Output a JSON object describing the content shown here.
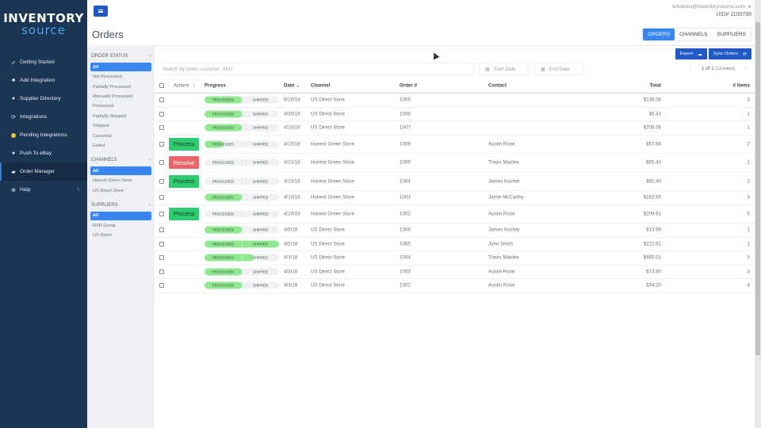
{
  "logo": {
    "line1": "INVENTORY",
    "line2": "source"
  },
  "sidebar": {
    "items": [
      {
        "label": "Getting Started",
        "icon": "rocket-icon",
        "glyph": "➶"
      },
      {
        "label": "Add Integration",
        "icon": "plug-icon",
        "glyph": "♣"
      },
      {
        "label": "Supplier Directory",
        "icon": "globe-icon",
        "glyph": "●"
      },
      {
        "label": "Integrations",
        "icon": "sync-icon",
        "glyph": "⟳"
      },
      {
        "label": "Pending Integrations",
        "icon": "pending-dot-icon",
        "glyph": ""
      },
      {
        "label": "Push To eBay",
        "icon": "globe-icon",
        "glyph": "●"
      },
      {
        "label": "Order Manager",
        "icon": "truck-icon",
        "glyph": "▰"
      },
      {
        "label": "Help",
        "icon": "lifebuoy-icon",
        "glyph": "⊕"
      }
    ],
    "help_chevron": "‹"
  },
  "topbar": {
    "email": "solutions@inventorysource.com",
    "uid": "UID# 1100789"
  },
  "header": {
    "title": "Orders",
    "tabs": [
      {
        "label": "ORDERS",
        "active": true
      },
      {
        "label": "CHANNELS",
        "active": false
      },
      {
        "label": "SUPPLIERS",
        "active": false
      }
    ]
  },
  "filters": {
    "order_status": {
      "title": "ORDER STATUS",
      "items": [
        "All",
        "Not Processed",
        "Partially Processed",
        "Manually Processed",
        "Processed",
        "Partially Shipped",
        "Shipped",
        "Canceled",
        "Failed"
      ]
    },
    "channels": {
      "title": "CHANNELS",
      "items": [
        "All",
        "Honest Green Store",
        "US Direct Store"
      ]
    },
    "suppliers": {
      "title": "SUPPLIERS",
      "items": [
        "All",
        "RSR Group",
        "US Direct"
      ]
    }
  },
  "toolbar": {
    "export_label": "Export",
    "sync_label": "Sync Orders",
    "search_placeholder": "Search by order, customer, SKU",
    "start_date_placeholder": "Start Date",
    "end_date_placeholder": "End Date",
    "pager_text": "1 of 1",
    "pager_count": "(13 orders)"
  },
  "table": {
    "columns": {
      "actions": "Actions",
      "progress": "Progress",
      "date": "Date",
      "channel": "Channel",
      "order": "Order #",
      "contact": "Contact",
      "total": "Total",
      "items": "# Items"
    },
    "progress_labels": {
      "processed": "PROCESSED",
      "shipped": "SHIPPED"
    },
    "rows": [
      {
        "action": "",
        "progress": 50,
        "date": "5/10/18",
        "channel": "US Direct Store",
        "order": "1009",
        "contact": "",
        "total": "$138.56",
        "items": "3"
      },
      {
        "action": "",
        "progress": 50,
        "date": "4/30/18",
        "channel": "US Direct Store",
        "order": "1008",
        "contact": "",
        "total": "$6.41",
        "items": "1"
      },
      {
        "action": "",
        "progress": 50,
        "date": "4/10/18",
        "channel": "US Direct Store",
        "order": "1007",
        "contact": "",
        "total": "$208.08",
        "items": "1"
      },
      {
        "action": "Process",
        "progress": 25,
        "date": "4/10/18",
        "channel": "Honest Green Store",
        "order": "1006",
        "contact": "Austin Rose",
        "total": "$57.68",
        "items": "2"
      },
      {
        "action": "Resolve",
        "progress": 0,
        "date": "4/10/18",
        "channel": "Honest Green Store",
        "order": "1005",
        "contact": "Travis Manlea",
        "total": "$55.43",
        "items": "1"
      },
      {
        "action": "Process",
        "progress": 0,
        "date": "4/10/18",
        "channel": "Honest Green Store",
        "order": "1004",
        "contact": "James Kuchar",
        "total": "$92.40",
        "items": "2"
      },
      {
        "action": "",
        "progress": 50,
        "date": "4/10/18",
        "channel": "Honest Green Store",
        "order": "1003",
        "contact": "Jamie McCarthy",
        "total": "$162.65",
        "items": "3"
      },
      {
        "action": "Process",
        "progress": 0,
        "date": "4/10/18",
        "channel": "Honest Green Store",
        "order": "1002",
        "contact": "Austin Rose",
        "total": "$209.61",
        "items": "5"
      },
      {
        "action": "",
        "progress": 50,
        "date": "4/5/18",
        "channel": "US Direct Store",
        "order": "1006",
        "contact": "James Kuchar",
        "total": "$13.99",
        "items": "1"
      },
      {
        "action": "",
        "progress": 100,
        "date": "4/5/18",
        "channel": "US Direct Store",
        "order": "1005",
        "contact": "John Smith",
        "total": "$222.61",
        "items": "1"
      },
      {
        "action": "",
        "progress": 66,
        "date": "4/3/18",
        "channel": "US Direct Store",
        "order": "1004",
        "contact": "Travis Manlea",
        "total": "$965.02",
        "items": "3"
      },
      {
        "action": "",
        "progress": 50,
        "date": "4/3/18",
        "channel": "US Direct Store",
        "order": "1003",
        "contact": "Austin Rose",
        "total": "$73.80",
        "items": "3"
      },
      {
        "action": "",
        "progress": 50,
        "date": "4/3/18",
        "channel": "US Direct Store",
        "order": "1002",
        "contact": "Austin Rose",
        "total": "$34.20",
        "items": "4"
      }
    ]
  },
  "colors": {
    "sidebar_bg": "#1b3555",
    "primary_blue": "#1f59c9",
    "accent_blue": "#3a86f0",
    "process_green": "#2ecc71",
    "resolve_red": "#ef6366",
    "progress_green": "#8ee88e"
  }
}
